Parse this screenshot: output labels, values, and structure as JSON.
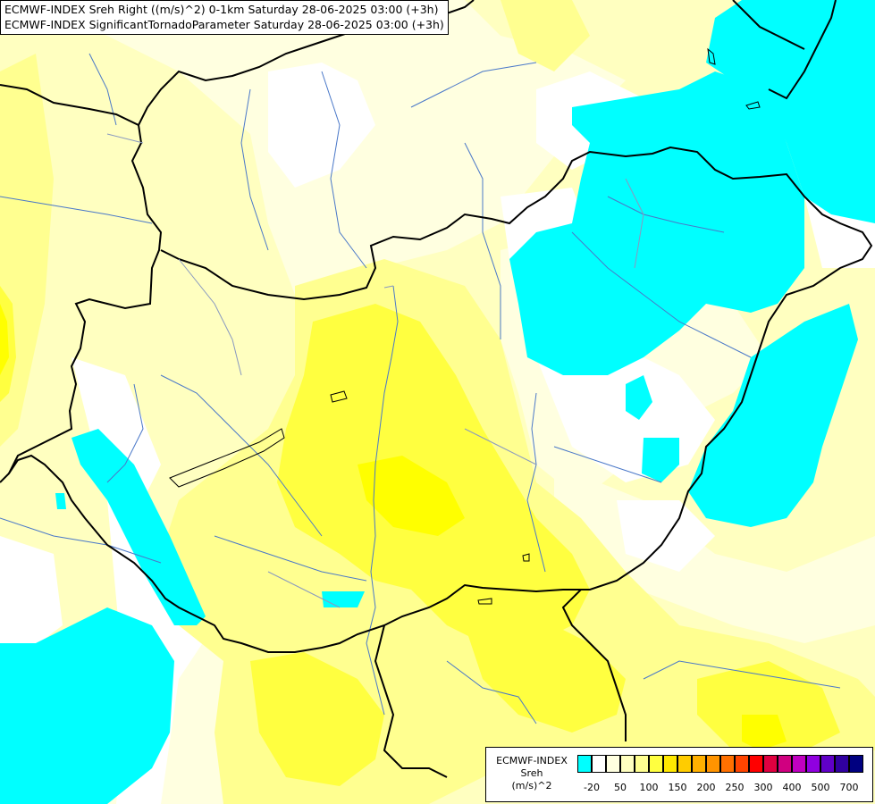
{
  "titles": {
    "line1": "ECMWF-INDEX Sreh Right ((m/s)^2) 0-1km Saturday 28-06-2025 03:00 (+3h)",
    "line2": "ECMWF-INDEX SignificantTornadoParameter Saturday 28-06-2025 03:00 (+3h)"
  },
  "legend": {
    "line1": "ECMWF-INDEX",
    "line2": "Sreh",
    "line3": "(m/s)^2",
    "colors": [
      "#00ffff",
      "#ffffff",
      "#ffffe0",
      "#ffffc0",
      "#ffff90",
      "#ffff40",
      "#ffe800",
      "#ffcc00",
      "#ffb000",
      "#ff9400",
      "#ff7000",
      "#ff4400",
      "#ff0000",
      "#e00040",
      "#d00080",
      "#c000c0",
      "#9000e0",
      "#6000c8",
      "#3000a0",
      "#000080"
    ],
    "ticks": [
      "-20",
      "50",
      "100",
      "150",
      "200",
      "250",
      "300",
      "400",
      "500",
      "700"
    ]
  },
  "map_colors": {
    "cyan": "#00ffff",
    "white": "#ffffff",
    "pale": "#ffffe0",
    "light": "#ffffc0",
    "mid": "#ffff90",
    "yellow": "#ffff40",
    "bright": "#ffff00",
    "border": "#000000",
    "river": "#4a78c8"
  }
}
